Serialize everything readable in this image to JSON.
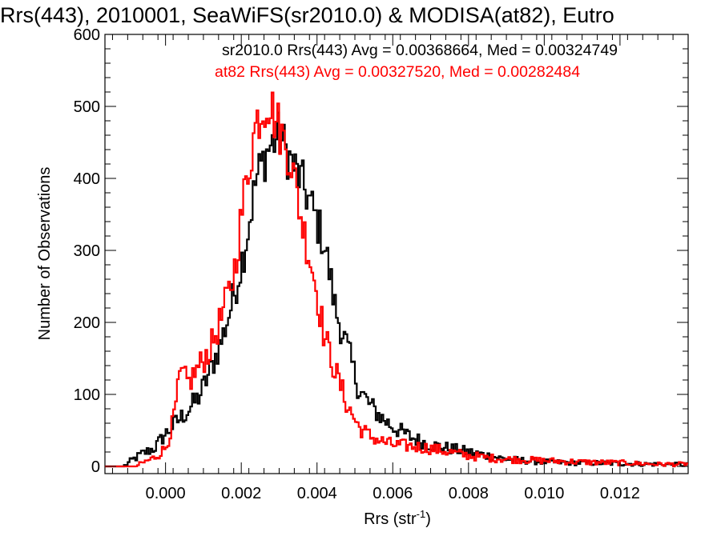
{
  "chart_data": {
    "type": "line",
    "step": true,
    "title": "Rrs(443), 2010001, SeaWiFS(sr2010.0) & MODISA(at82), Eutro",
    "xlabel": "Rrs (str",
    "xlabel_sup": "-1",
    "xlabel_tail": ")",
    "ylabel": "Number of Observations",
    "xlim": [
      -0.0016,
      0.0138
    ],
    "ylim": [
      -10,
      600
    ],
    "grid": false,
    "legend_position": "top-right",
    "x_ticks": [
      0.0,
      0.002,
      0.004,
      0.006,
      0.008,
      0.01,
      0.012
    ],
    "x_tick_labels": [
      "0.000",
      "0.002",
      "0.004",
      "0.006",
      "0.008",
      "0.010",
      "0.012"
    ],
    "y_ticks": [
      0,
      100,
      200,
      300,
      400,
      500,
      600
    ],
    "y_tick_labels": [
      "0",
      "100",
      "200",
      "300",
      "400",
      "500",
      "600"
    ],
    "series": [
      {
        "name": "sr2010.0 Rrs(443) Avg = 0.00368664, Med = 0.00324749",
        "color": "#000000",
        "anchors": [
          [
            -0.0016,
            0
          ],
          [
            -0.0011,
            0
          ],
          [
            -0.0009,
            8
          ],
          [
            -0.0006,
            18
          ],
          [
            -0.0003,
            25
          ],
          [
            0.0,
            45
          ],
          [
            0.0003,
            62
          ],
          [
            0.0006,
            78
          ],
          [
            0.0009,
            98
          ],
          [
            0.0012,
            135
          ],
          [
            0.0015,
            178
          ],
          [
            0.0018,
            235
          ],
          [
            0.0021,
            305
          ],
          [
            0.0024,
            400
          ],
          [
            0.0027,
            440
          ],
          [
            0.003,
            460
          ],
          [
            0.0033,
            425
          ],
          [
            0.0036,
            395
          ],
          [
            0.0039,
            355
          ],
          [
            0.0042,
            310
          ],
          [
            0.0045,
            215
          ],
          [
            0.0048,
            165
          ],
          [
            0.0051,
            108
          ],
          [
            0.0054,
            85
          ],
          [
            0.0057,
            68
          ],
          [
            0.006,
            55
          ],
          [
            0.0065,
            40
          ],
          [
            0.007,
            30
          ],
          [
            0.0075,
            25
          ],
          [
            0.008,
            20
          ],
          [
            0.0085,
            15
          ],
          [
            0.009,
            10
          ],
          [
            0.0095,
            8
          ],
          [
            0.01,
            6
          ],
          [
            0.011,
            5
          ],
          [
            0.012,
            4
          ],
          [
            0.013,
            3
          ],
          [
            0.0138,
            2
          ]
        ]
      },
      {
        "name": "at82 Rrs(443) Avg = 0.00327520, Med = 0.00282484",
        "color": "#ff0000",
        "anchors": [
          [
            -0.0016,
            0
          ],
          [
            -0.0008,
            0
          ],
          [
            -0.0006,
            5
          ],
          [
            -0.0003,
            12
          ],
          [
            0.0,
            25
          ],
          [
            0.0002,
            62
          ],
          [
            0.0004,
            130
          ],
          [
            0.0006,
            115
          ],
          [
            0.0009,
            140
          ],
          [
            0.0012,
            165
          ],
          [
            0.0015,
            210
          ],
          [
            0.0018,
            265
          ],
          [
            0.0021,
            385
          ],
          [
            0.0024,
            480
          ],
          [
            0.0027,
            510
          ],
          [
            0.003,
            470
          ],
          [
            0.0033,
            430
          ],
          [
            0.0036,
            340
          ],
          [
            0.0039,
            270
          ],
          [
            0.0042,
            180
          ],
          [
            0.0045,
            130
          ],
          [
            0.0048,
            85
          ],
          [
            0.0051,
            55
          ],
          [
            0.0054,
            42
          ],
          [
            0.0057,
            35
          ],
          [
            0.006,
            30
          ],
          [
            0.0065,
            28
          ],
          [
            0.007,
            25
          ],
          [
            0.0075,
            20
          ],
          [
            0.008,
            15
          ],
          [
            0.0085,
            12
          ],
          [
            0.009,
            10
          ],
          [
            0.01,
            8
          ],
          [
            0.011,
            6
          ],
          [
            0.012,
            5
          ],
          [
            0.013,
            3
          ],
          [
            0.0138,
            3
          ]
        ]
      }
    ]
  }
}
